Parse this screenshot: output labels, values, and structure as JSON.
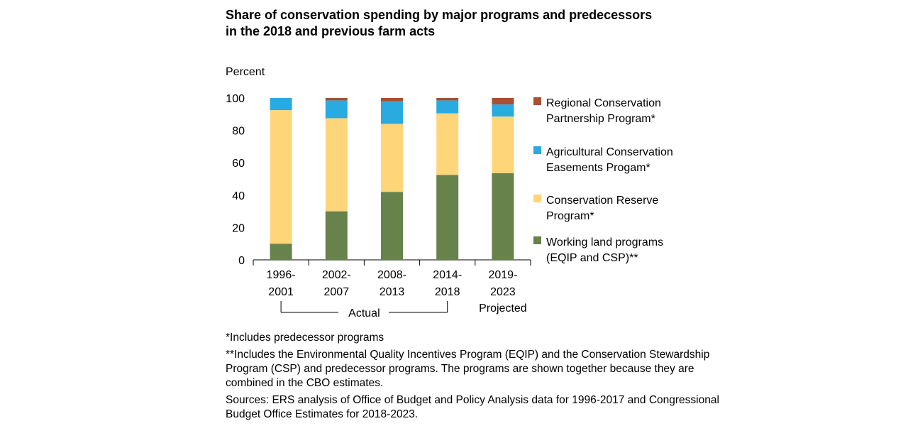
{
  "title": "Share of conservation spending by major programs and predecessors in the 2018 and previous farm acts",
  "notes": {
    "note1": "*Includes predecessor programs",
    "note2": "**Includes the Environmental Quality Incentives Program (EQIP) and the Conservation Stewardship Program (CSP) and predecessor programs. The programs are shown together because they are combined in the CBO estimates.",
    "sources": "Sources: ERS analysis of Office of Budget and Policy Analysis data for 1996-2017 and Congressional Budget Office Estimates for 2018-2023."
  },
  "chart_data": {
    "type": "bar",
    "stacked": true,
    "title": "Share of conservation spending by major programs and predecessors in the 2018 and previous farm acts",
    "ylabel": "Percent",
    "xlabel": "",
    "ylim": [
      0,
      100
    ],
    "yticks": [
      0,
      20,
      40,
      60,
      80,
      100
    ],
    "categories": [
      [
        "1996-",
        "2001"
      ],
      [
        "2002-",
        "2007"
      ],
      [
        "2008-",
        "2013"
      ],
      [
        "2014-",
        "2018"
      ],
      [
        "2019-",
        "2023"
      ]
    ],
    "group_labels": {
      "actual": "Actual",
      "projected": "Projected"
    },
    "series": [
      {
        "name": [
          "Working land programs",
          "(EQIP and CSP)**"
        ],
        "color": "#67824b",
        "values": [
          10,
          30,
          42,
          52.5,
          53.5
        ]
      },
      {
        "name": [
          "Conservation Reserve",
          "Program*"
        ],
        "color": "#ffd57a",
        "values": [
          82.5,
          57.5,
          42,
          38,
          35
        ]
      },
      {
        "name": [
          "Agricultural Conservation",
          "Easements Progam*"
        ],
        "color": "#29abe2",
        "values": [
          7.5,
          11,
          14,
          8,
          7.5
        ]
      },
      {
        "name": [
          "Regional Conservation",
          "Partnership Program*"
        ],
        "color": "#a8502f",
        "values": [
          0,
          1.5,
          2,
          1.5,
          4
        ]
      }
    ],
    "legend_order": [
      3,
      2,
      1,
      0
    ],
    "legend_position": "right"
  }
}
